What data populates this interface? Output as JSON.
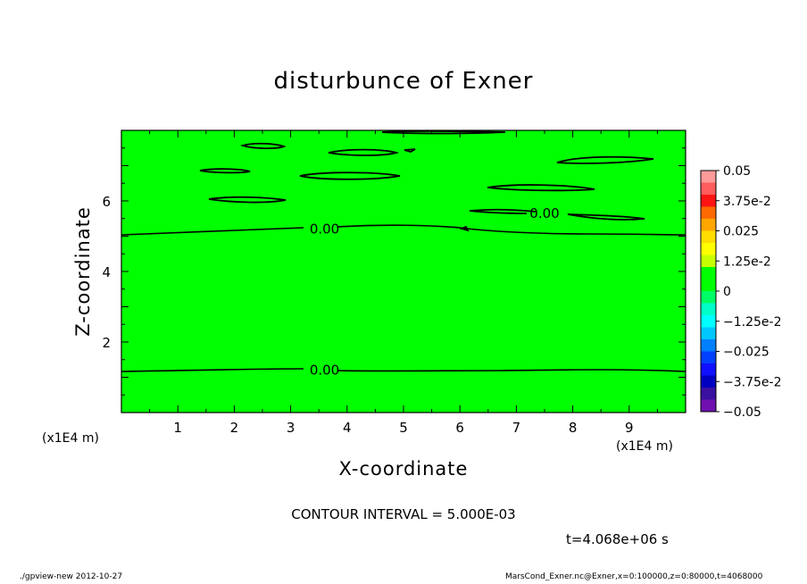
{
  "header": {
    "title": "disturbunce of Exner",
    "contour_interval": "CONTOUR INTERVAL = 5.000E-03",
    "time_label": "t=4.068e+06 s"
  },
  "footer": {
    "left": "./gpview-new   2012-10-27",
    "right": "MarsCond_Exner.nc@Exner,x=0:100000,z=0:80000,t=4068000"
  },
  "axes": {
    "x_unit_left": "(x1E4 m)",
    "x_unit_right": "(x1E4 m)"
  },
  "colors": {
    "field": "#00ff00",
    "contour": "#000000"
  },
  "chart_data": {
    "type": "heatmap",
    "title": "disturbunce of Exner",
    "xlabel": "X-coordinate",
    "ylabel": "Z-coordinate",
    "xlim": [
      0,
      10
    ],
    "ylim": [
      0,
      8
    ],
    "x_ticks": [
      1,
      2,
      3,
      4,
      5,
      6,
      7,
      8,
      9
    ],
    "y_ticks": [
      2,
      4,
      6
    ],
    "grid": false,
    "contour_labels": [
      {
        "text": "0.00",
        "x": 3.6,
        "z": 5.2
      },
      {
        "text": "0.00",
        "x": 3.6,
        "z": 1.2
      },
      {
        "text": "0.00",
        "x": 7.5,
        "z": 5.65
      }
    ],
    "colorbar": {
      "levels": [
        "0.05",
        "3.75e-2",
        "0.025",
        "1.25e-2",
        "0",
        "−1.25e-2",
        "−0.025",
        "−3.75e-2",
        "−0.05"
      ],
      "band_colors": [
        "#ff9a9a",
        "#ff5c5c",
        "#ff1414",
        "#ff6a00",
        "#ffa600",
        "#ffdd00",
        "#ffff00",
        "#c8ff00",
        "#00ff00",
        "#00ff00",
        "#00ff66",
        "#00ffc8",
        "#00ffff",
        "#00c8ff",
        "#0080ff",
        "#0040ff",
        "#1010ff",
        "#0000c0",
        "#3a10a0",
        "#7010b0"
      ]
    }
  }
}
